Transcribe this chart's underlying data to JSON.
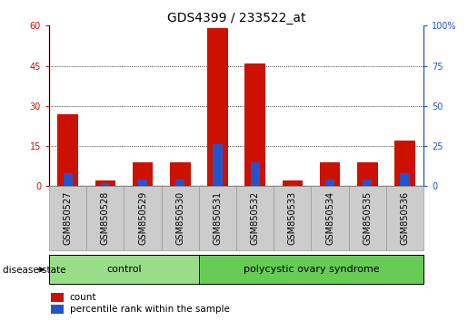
{
  "title": "GDS4399 / 233522_at",
  "samples": [
    "GSM850527",
    "GSM850528",
    "GSM850529",
    "GSM850530",
    "GSM850531",
    "GSM850532",
    "GSM850533",
    "GSM850534",
    "GSM850535",
    "GSM850536"
  ],
  "count": [
    27,
    2,
    9,
    9,
    59,
    46,
    2,
    9,
    9,
    17
  ],
  "percentile": [
    8,
    2,
    4,
    4,
    26,
    15,
    1,
    4,
    4,
    8
  ],
  "count_color": "#cc1100",
  "percentile_color": "#2255cc",
  "left_ylim": [
    0,
    60
  ],
  "right_ylim": [
    0,
    100
  ],
  "left_yticks": [
    0,
    15,
    30,
    45,
    60
  ],
  "right_yticks": [
    0,
    25,
    50,
    75,
    100
  ],
  "right_yticklabels": [
    "0",
    "25",
    "50",
    "75",
    "100%"
  ],
  "left_yticklabels": [
    "0",
    "15",
    "30",
    "45",
    "60"
  ],
  "grid_yticks": [
    15,
    30,
    45
  ],
  "bar_width": 0.55,
  "control_n": 4,
  "pcos_n": 6,
  "control_color": "#99dd88",
  "pcos_color": "#66cc55",
  "disease_label": "disease state",
  "control_label": "control",
  "pcos_label": "polycystic ovary syndrome",
  "legend_count": "count",
  "legend_percentile": "percentile rank within the sample",
  "xtick_bg_color": "#cccccc",
  "title_fontsize": 10,
  "tick_fontsize": 7,
  "label_fontsize": 8,
  "legend_fontsize": 7.5
}
